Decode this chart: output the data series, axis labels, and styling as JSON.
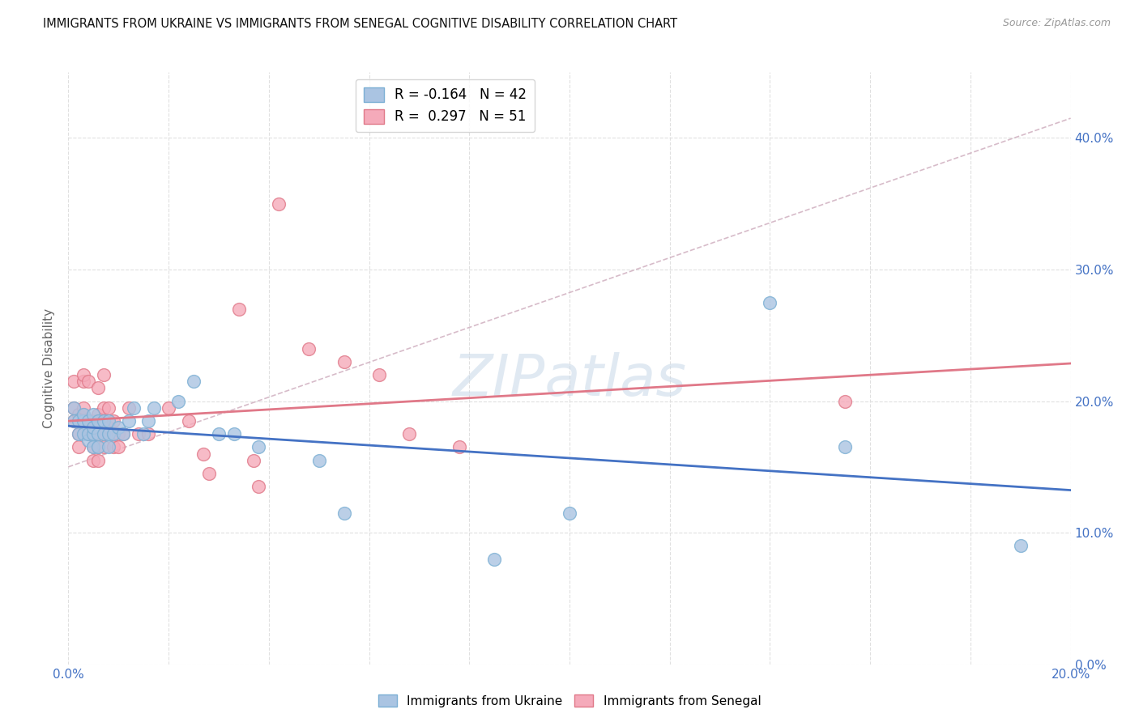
{
  "title": "IMMIGRANTS FROM UKRAINE VS IMMIGRANTS FROM SENEGAL COGNITIVE DISABILITY CORRELATION CHART",
  "source": "Source: ZipAtlas.com",
  "ylabel": "Cognitive Disability",
  "xlim": [
    0.0,
    0.2
  ],
  "ylim": [
    0.0,
    0.45
  ],
  "xticks": [
    0.0,
    0.02,
    0.04,
    0.06,
    0.08,
    0.1,
    0.12,
    0.14,
    0.16,
    0.18,
    0.2
  ],
  "xtick_labels": [
    "0.0%",
    "",
    "",
    "",
    "",
    "",
    "",
    "",
    "",
    "",
    "20.0%"
  ],
  "yticks": [
    0.0,
    0.1,
    0.2,
    0.3,
    0.4
  ],
  "ytick_labels_right": [
    "0.0%",
    "10.0%",
    "20.0%",
    "30.0%",
    "40.0%"
  ],
  "ukraine_color": "#aac4e2",
  "ukraine_edge": "#7bafd4",
  "senegal_color": "#f5aaba",
  "senegal_edge": "#e07888",
  "ukraine_line_color": "#4472c4",
  "senegal_line_color": "#e07888",
  "dashed_line_color": "#d0b0c0",
  "ukraine_R": -0.164,
  "ukraine_N": 42,
  "senegal_R": 0.297,
  "senegal_N": 51,
  "ukraine_scatter_x": [
    0.001,
    0.001,
    0.002,
    0.002,
    0.003,
    0.003,
    0.003,
    0.004,
    0.004,
    0.004,
    0.005,
    0.005,
    0.005,
    0.005,
    0.006,
    0.006,
    0.006,
    0.007,
    0.007,
    0.008,
    0.008,
    0.008,
    0.009,
    0.01,
    0.011,
    0.012,
    0.013,
    0.015,
    0.016,
    0.017,
    0.022,
    0.025,
    0.03,
    0.033,
    0.038,
    0.05,
    0.055,
    0.085,
    0.1,
    0.14,
    0.155,
    0.19
  ],
  "ukraine_scatter_y": [
    0.185,
    0.195,
    0.175,
    0.185,
    0.175,
    0.185,
    0.19,
    0.17,
    0.175,
    0.185,
    0.165,
    0.175,
    0.18,
    0.19,
    0.165,
    0.175,
    0.185,
    0.175,
    0.185,
    0.165,
    0.175,
    0.185,
    0.175,
    0.18,
    0.175,
    0.185,
    0.195,
    0.175,
    0.185,
    0.195,
    0.2,
    0.215,
    0.175,
    0.175,
    0.165,
    0.155,
    0.115,
    0.08,
    0.115,
    0.275,
    0.165,
    0.09
  ],
  "senegal_scatter_x": [
    0.001,
    0.001,
    0.001,
    0.002,
    0.002,
    0.002,
    0.003,
    0.003,
    0.003,
    0.003,
    0.004,
    0.004,
    0.004,
    0.005,
    0.005,
    0.005,
    0.005,
    0.006,
    0.006,
    0.006,
    0.006,
    0.006,
    0.007,
    0.007,
    0.007,
    0.007,
    0.008,
    0.008,
    0.009,
    0.009,
    0.009,
    0.01,
    0.01,
    0.011,
    0.012,
    0.014,
    0.016,
    0.02,
    0.024,
    0.027,
    0.028,
    0.034,
    0.037,
    0.038,
    0.042,
    0.048,
    0.055,
    0.062,
    0.068,
    0.078,
    0.155
  ],
  "senegal_scatter_y": [
    0.185,
    0.195,
    0.215,
    0.165,
    0.175,
    0.19,
    0.19,
    0.195,
    0.215,
    0.22,
    0.175,
    0.185,
    0.215,
    0.155,
    0.165,
    0.175,
    0.185,
    0.155,
    0.165,
    0.175,
    0.19,
    0.21,
    0.165,
    0.175,
    0.195,
    0.22,
    0.18,
    0.195,
    0.165,
    0.175,
    0.185,
    0.165,
    0.175,
    0.175,
    0.195,
    0.175,
    0.175,
    0.195,
    0.185,
    0.16,
    0.145,
    0.27,
    0.155,
    0.135,
    0.35,
    0.24,
    0.23,
    0.22,
    0.175,
    0.165,
    0.2
  ],
  "background_color": "#ffffff",
  "grid_color": "#e0e0e0",
  "watermark": "ZIPatlas"
}
